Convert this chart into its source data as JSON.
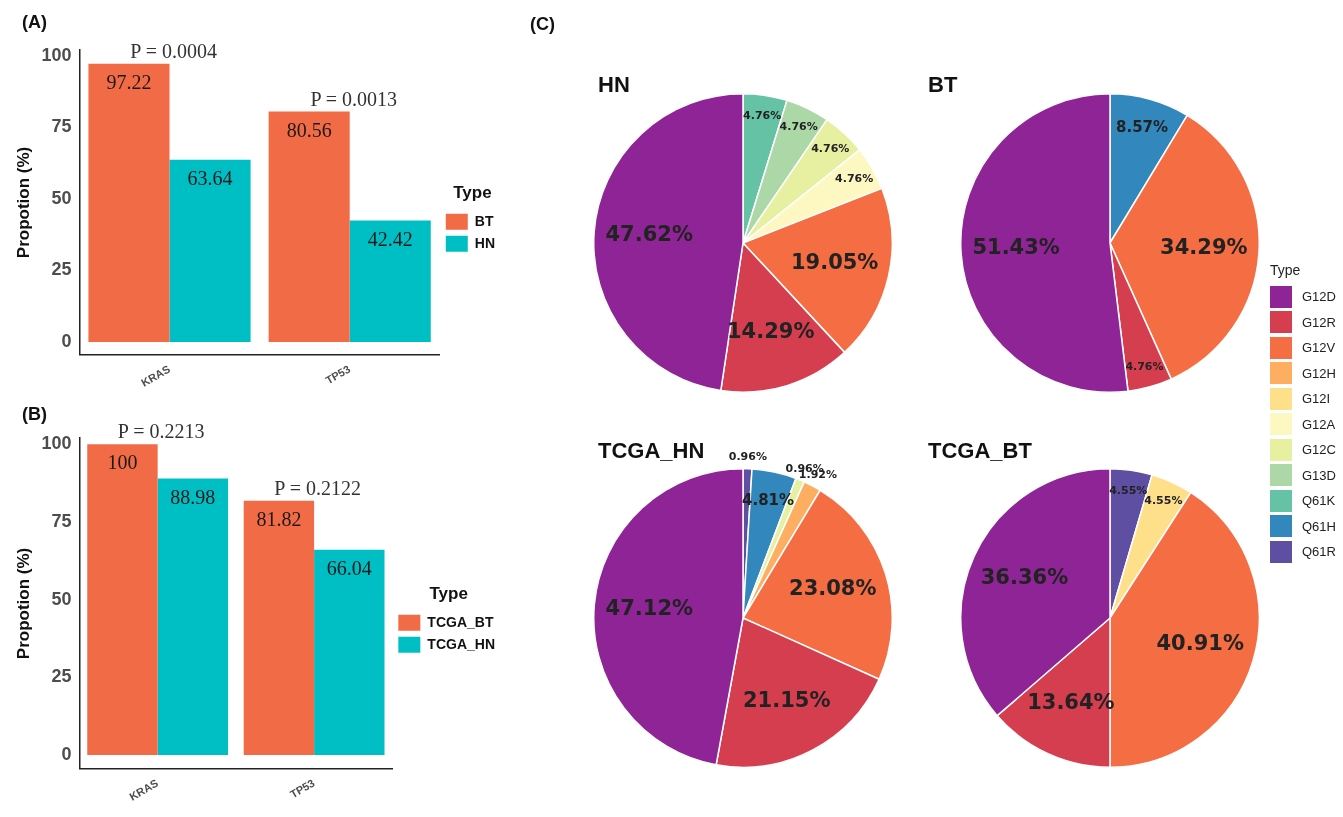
{
  "chart_data": [
    {
      "type": "bar",
      "title": "(A)",
      "categories": [
        "KRAS",
        "TP53"
      ],
      "ylabel": "Propotion (%)",
      "legend_title": "Type",
      "legend": "right",
      "grid": false,
      "data_labels": true,
      "ylim": [
        -4.5,
        102
      ],
      "yticks": [
        0,
        25,
        50,
        75,
        100
      ],
      "series": [
        {
          "name": "BT",
          "color": "#f26b47",
          "values": [
            97.22,
            80.56
          ]
        },
        {
          "name": "HN",
          "color": "#00bfc4",
          "values": [
            63.64,
            42.42
          ]
        }
      ],
      "annotations": [
        {
          "text": "P = 0.0004",
          "x": "KRAS",
          "y": 97.22
        },
        {
          "text": "P = 0.0013",
          "x": "TP53",
          "y": 80.56
        }
      ]
    },
    {
      "type": "bar",
      "title": "(B)",
      "categories": [
        "KRAS",
        "TP53"
      ],
      "ylabel": "Propotion (%)",
      "legend_title": "Type",
      "legend": "right",
      "grid": false,
      "data_labels": true,
      "ylim": [
        -4.5,
        102
      ],
      "yticks": [
        0,
        25,
        50,
        75,
        100
      ],
      "series": [
        {
          "name": "TCGA_BT",
          "color": "#f26b47",
          "values": [
            100,
            81.82
          ]
        },
        {
          "name": "TCGA_HN",
          "color": "#00bfc4",
          "values": [
            88.98,
            66.04
          ]
        }
      ],
      "annotations": [
        {
          "text": "P = 0.2213",
          "x": "KRAS",
          "y": 100
        },
        {
          "text": "P = 0.2122",
          "x": "TP53",
          "y": 81.82
        }
      ]
    },
    {
      "type": "pie",
      "title": "HN",
      "legend": false,
      "annotations": [
        "(C)"
      ],
      "categories": [
        null,
        null,
        null,
        null,
        null,
        null,
        null,
        null,
        null,
        null,
        null
      ],
      "colors": [
        "#8e2496",
        "#d53e4f",
        "#f46d43",
        "#fdae61",
        "#fee08b",
        "#fdf8c2",
        "#e6f0a0",
        "#abd8a6",
        "#66c2a5",
        "#3288bd",
        "#5e4fa2"
      ],
      "values": [
        47.62,
        14.29,
        19.05,
        null,
        null,
        4.76,
        4.76,
        4.76,
        4.76,
        null,
        null
      ],
      "value_labels": [
        "47.62%",
        "14.29%",
        "19.05%",
        null,
        null,
        "4.76%",
        "4.76%",
        "4.76%",
        "4.76%",
        null,
        null
      ]
    },
    {
      "type": "pie",
      "title": "BT",
      "legend": false,
      "categories": [
        null,
        null,
        null,
        null,
        null,
        null,
        null,
        null,
        null,
        null,
        null
      ],
      "colors": [
        "#8e2496",
        "#d53e4f",
        "#f46d43",
        "#fdae61",
        "#fee08b",
        "#fdf8c2",
        "#e6f0a0",
        "#abd8a6",
        "#66c2a5",
        "#3288bd",
        "#5e4fa2"
      ],
      "values": [
        51.43,
        4.76,
        34.29,
        null,
        null,
        null,
        null,
        null,
        null,
        8.57,
        null
      ],
      "value_labels": [
        "51.43%",
        "4.76%",
        "34.29%",
        null,
        null,
        null,
        null,
        null,
        null,
        "8.57%",
        null
      ]
    },
    {
      "type": "pie",
      "title": "TCGA_HN",
      "legend": false,
      "categories": [
        null,
        null,
        null,
        null,
        null,
        null,
        null,
        null,
        null,
        null,
        null
      ],
      "colors": [
        "#8e2496",
        "#d53e4f",
        "#f46d43",
        "#fdae61",
        "#fee08b",
        "#fdf8c2",
        "#e6f0a0",
        "#abd8a6",
        "#66c2a5",
        "#3288bd",
        "#5e4fa2"
      ],
      "values": [
        47.12,
        21.15,
        23.08,
        1.92,
        null,
        null,
        0.96,
        null,
        null,
        4.81,
        0.96
      ],
      "value_labels": [
        "47.12%",
        "21.15%",
        "23.08%",
        "1.92%",
        null,
        null,
        "0.96%",
        null,
        null,
        "4.81%",
        "0.96%"
      ]
    },
    {
      "type": "pie",
      "title": "TCGA_BT",
      "legend": "right",
      "legend_title": "Type",
      "categories": [
        "G12D",
        "G12R",
        "G12V",
        "G12H",
        "G12I",
        "G12A",
        "G12C",
        "G13D",
        "Q61K",
        "Q61H",
        "Q61R"
      ],
      "colors": [
        "#8e2496",
        "#d53e4f",
        "#f46d43",
        "#fdae61",
        "#fee08b",
        "#fdf8c2",
        "#e6f0a0",
        "#abd8a6",
        "#66c2a5",
        "#3288bd",
        "#5e4fa2"
      ],
      "values": [
        36.36,
        13.64,
        40.91,
        null,
        4.55,
        null,
        null,
        null,
        null,
        null,
        4.55
      ],
      "value_labels": [
        "36.36%",
        "13.64%",
        "40.91%",
        null,
        "4.55%",
        null,
        null,
        null,
        null,
        null,
        "4.55%"
      ]
    }
  ]
}
